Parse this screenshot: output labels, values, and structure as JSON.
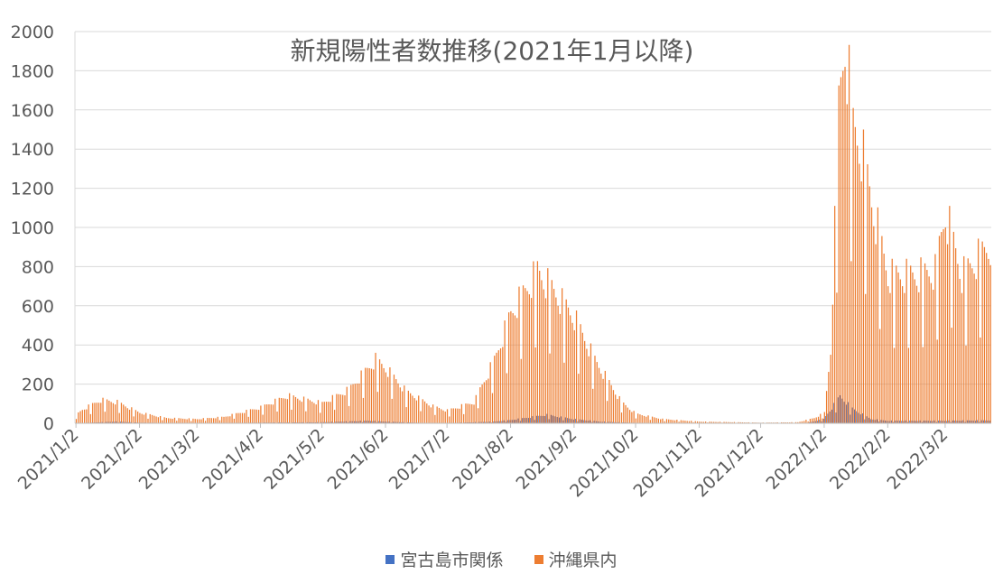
{
  "chart_data": {
    "type": "bar",
    "title": "新規陽性者数推移(2021年1月以降)",
    "ylim": [
      0,
      2000
    ],
    "yticks": [
      0,
      200,
      400,
      600,
      800,
      1000,
      1200,
      1400,
      1600,
      1800,
      2000
    ],
    "grid": true,
    "legend_position": "bottom",
    "x_start": "2021-01-02",
    "x_end": "2022-03-24",
    "xtick_labels": [
      "2021/1/2",
      "2021/2/2",
      "2021/3/2",
      "2021/4/2",
      "2021/5/2",
      "2021/6/2",
      "2021/7/2",
      "2021/8/2",
      "2021/9/2",
      "2021/10/2",
      "2021/11/2",
      "2021/12/2",
      "2022/1/2",
      "2022/2/2",
      "2022/3/2"
    ],
    "series": [
      {
        "name": "宮古島市関係",
        "color": "#4472C4",
        "keyframes": [
          [
            "2021-01-02",
            0
          ],
          [
            "2021-01-12",
            4
          ],
          [
            "2021-01-22",
            8
          ],
          [
            "2021-02-02",
            3
          ],
          [
            "2021-03-02",
            1
          ],
          [
            "2021-04-02",
            3
          ],
          [
            "2021-05-02",
            5
          ],
          [
            "2021-05-25",
            12
          ],
          [
            "2021-06-02",
            8
          ],
          [
            "2021-06-20",
            2
          ],
          [
            "2021-07-02",
            1
          ],
          [
            "2021-07-25",
            8
          ],
          [
            "2021-08-02",
            15
          ],
          [
            "2021-08-20",
            40
          ],
          [
            "2021-09-02",
            20
          ],
          [
            "2021-09-15",
            8
          ],
          [
            "2021-10-02",
            2
          ],
          [
            "2021-11-02",
            0
          ],
          [
            "2021-12-02",
            0
          ],
          [
            "2021-12-25",
            2
          ],
          [
            "2022-01-02",
            20
          ],
          [
            "2022-01-08",
            100
          ],
          [
            "2022-01-10",
            130
          ],
          [
            "2022-01-16",
            70
          ],
          [
            "2022-01-25",
            20
          ],
          [
            "2022-02-02",
            12
          ],
          [
            "2022-03-02",
            12
          ],
          [
            "2022-03-24",
            14
          ]
        ]
      },
      {
        "name": "沖縄県内",
        "color": "#ED7D31",
        "keyframes": [
          [
            "2021-01-02",
            40
          ],
          [
            "2021-01-05",
            65
          ],
          [
            "2021-01-14",
            110
          ],
          [
            "2021-01-22",
            100
          ],
          [
            "2021-02-02",
            50
          ],
          [
            "2021-02-15",
            25
          ],
          [
            "2021-03-02",
            20
          ],
          [
            "2021-03-15",
            30
          ],
          [
            "2021-04-02",
            75
          ],
          [
            "2021-04-15",
            130
          ],
          [
            "2021-05-02",
            95
          ],
          [
            "2021-05-15",
            160
          ],
          [
            "2021-05-28",
            300
          ],
          [
            "2021-06-02",
            260
          ],
          [
            "2021-06-12",
            150
          ],
          [
            "2021-06-25",
            80
          ],
          [
            "2021-07-02",
            60
          ],
          [
            "2021-07-15",
            100
          ],
          [
            "2021-07-25",
            300
          ],
          [
            "2021-08-02",
            520
          ],
          [
            "2021-08-15",
            720
          ],
          [
            "2021-08-25",
            600
          ],
          [
            "2021-09-02",
            500
          ],
          [
            "2021-09-12",
            300
          ],
          [
            "2021-09-25",
            100
          ],
          [
            "2021-10-02",
            45
          ],
          [
            "2021-10-15",
            20
          ],
          [
            "2021-11-02",
            8
          ],
          [
            "2021-12-02",
            3
          ],
          [
            "2021-12-20",
            5
          ],
          [
            "2021-12-28",
            25
          ],
          [
            "2022-01-02",
            50
          ],
          [
            "2022-01-05",
            350
          ],
          [
            "2022-01-09",
            1500
          ],
          [
            "2022-01-12",
            1820
          ],
          [
            "2022-01-16",
            1400
          ],
          [
            "2022-01-20",
            1300
          ],
          [
            "2022-01-25",
            1050
          ],
          [
            "2022-02-02",
            700
          ],
          [
            "2022-02-15",
            700
          ],
          [
            "2022-02-25",
            720
          ],
          [
            "2022-03-02",
            1000
          ],
          [
            "2022-03-10",
            700
          ],
          [
            "2022-03-24",
            850
          ]
        ]
      }
    ]
  }
}
